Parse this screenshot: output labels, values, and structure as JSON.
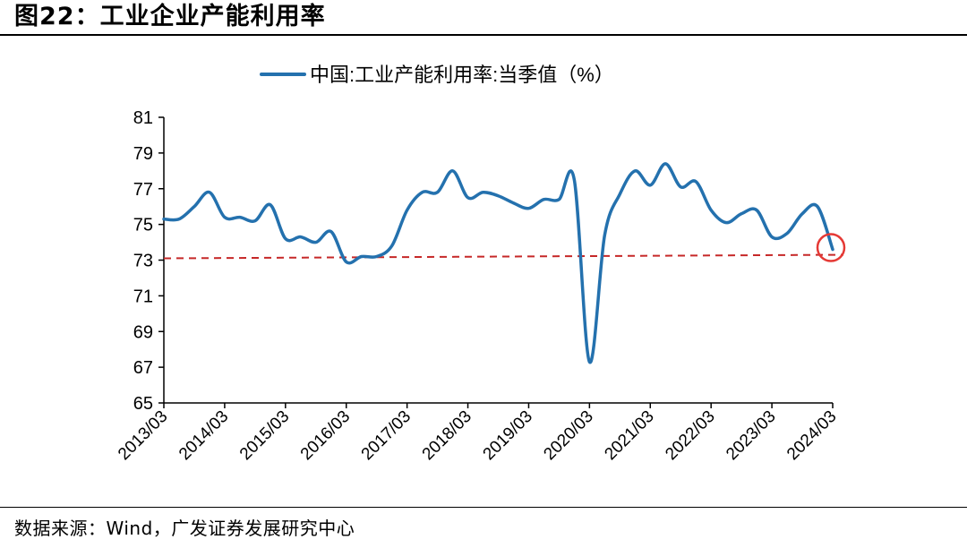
{
  "figure": {
    "title": "图22：工业企业产能利用率",
    "source": "数据来源：Wind，广发证券发展研究中心"
  },
  "colors": {
    "series": "#2471AE",
    "reference_line": "#C62828",
    "highlight_circle": "#E53935",
    "axis": "#000000"
  },
  "chart_data": {
    "type": "line",
    "title": "",
    "xlabel": "",
    "ylabel": "",
    "ylim": [
      65,
      81
    ],
    "yticks": [
      65,
      67,
      69,
      71,
      73,
      75,
      77,
      79,
      81
    ],
    "xtick_labels": [
      "2013/03",
      "2014/03",
      "2015/03",
      "2016/03",
      "2017/03",
      "2018/03",
      "2019/03",
      "2020/03",
      "2021/03",
      "2022/03",
      "2023/03",
      "2024/03"
    ],
    "grid": false,
    "legend": "top-center",
    "series": [
      {
        "name": "中国:工业产能利用率:当季值（%）",
        "x": [
          "2013/03",
          "2013/06",
          "2013/09",
          "2013/12",
          "2014/03",
          "2014/06",
          "2014/09",
          "2014/12",
          "2015/03",
          "2015/06",
          "2015/09",
          "2015/12",
          "2016/03",
          "2016/06",
          "2016/09",
          "2016/12",
          "2017/03",
          "2017/06",
          "2017/09",
          "2017/12",
          "2018/03",
          "2018/06",
          "2018/09",
          "2018/12",
          "2019/03",
          "2019/06",
          "2019/09",
          "2019/12",
          "2020/03",
          "2020/06",
          "2020/09",
          "2020/12",
          "2021/03",
          "2021/06",
          "2021/09",
          "2021/12",
          "2022/03",
          "2022/06",
          "2022/09",
          "2022/12",
          "2023/03",
          "2023/06",
          "2023/09",
          "2023/12",
          "2024/03"
        ],
        "values": [
          75.3,
          75.3,
          76.0,
          76.8,
          75.4,
          75.4,
          75.2,
          76.1,
          74.2,
          74.3,
          74.0,
          74.6,
          72.9,
          73.2,
          73.2,
          73.8,
          75.8,
          76.8,
          76.8,
          78.0,
          76.5,
          76.8,
          76.6,
          76.2,
          75.9,
          76.4,
          76.4,
          77.5,
          67.3,
          74.4,
          76.7,
          78.0,
          77.2,
          78.4,
          77.1,
          77.4,
          75.8,
          75.1,
          75.6,
          75.8,
          74.3,
          74.5,
          75.6,
          76.0,
          73.6
        ]
      }
    ],
    "reference_line": {
      "style": "dashed",
      "from": {
        "x": "2013/03",
        "y": 73.1
      },
      "to": {
        "x": "2024/03",
        "y": 73.3
      }
    },
    "highlight": {
      "x": "2024/03",
      "y": 73.6,
      "shape": "circle"
    }
  }
}
